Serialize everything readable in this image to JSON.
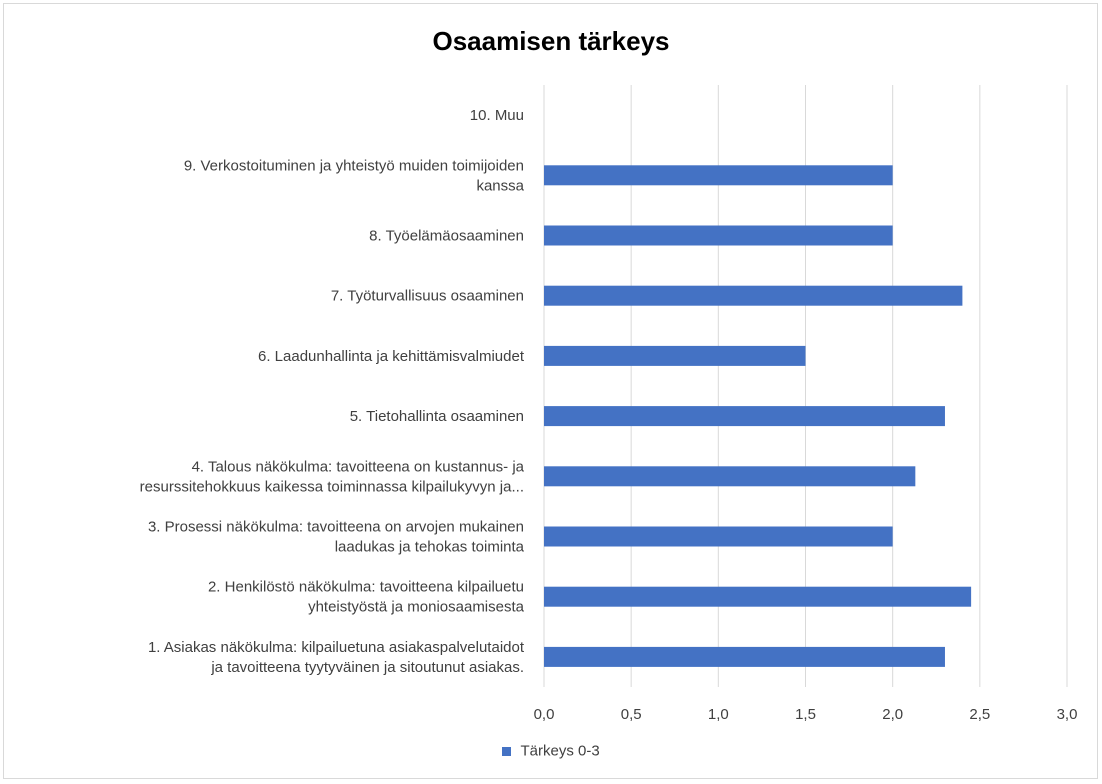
{
  "chart_data": {
    "type": "bar",
    "orientation": "horizontal",
    "title": "Osaamisen tärkeys",
    "categories": [
      [
        "1. Asiakas näkökulma: kilpailuetuna asiakaspalvelutaidot",
        "ja tavoitteena tyytyväinen ja sitoutunut asiakas."
      ],
      [
        "2. Henkilöstö näkökulma: tavoitteena kilpailuetu",
        "yhteistyöstä ja moniosaamisesta"
      ],
      [
        "3. Prosessi näkökulma: tavoitteena on arvojen mukainen",
        "laadukas ja tehokas toiminta"
      ],
      [
        "4. Talous näkökulma: tavoitteena on kustannus- ja",
        "resurssitehokkuus kaikessa toiminnassa kilpailukyvyn ja..."
      ],
      [
        "5. Tietohallinta osaaminen"
      ],
      [
        "6. Laadunhallinta ja kehittämisvalmiudet"
      ],
      [
        "7. Työturvallisuus osaaminen"
      ],
      [
        "8. Työelämäosaaminen"
      ],
      [
        "9. Verkostoituminen ja yhteistyö muiden toimijoiden",
        "kanssa"
      ],
      [
        "10. Muu"
      ]
    ],
    "series": [
      {
        "name": "Tärkeys 0-3",
        "color": "#4472c4",
        "values": [
          2.3,
          2.45,
          2.0,
          2.13,
          2.3,
          1.5,
          2.4,
          2.0,
          2.0,
          0
        ]
      }
    ],
    "xlim": [
      0,
      3
    ],
    "xticks": [
      "0,0",
      "0,5",
      "1,0",
      "1,5",
      "2,0",
      "2,5",
      "3,0"
    ],
    "grid": true,
    "legend_position": "bottom"
  }
}
